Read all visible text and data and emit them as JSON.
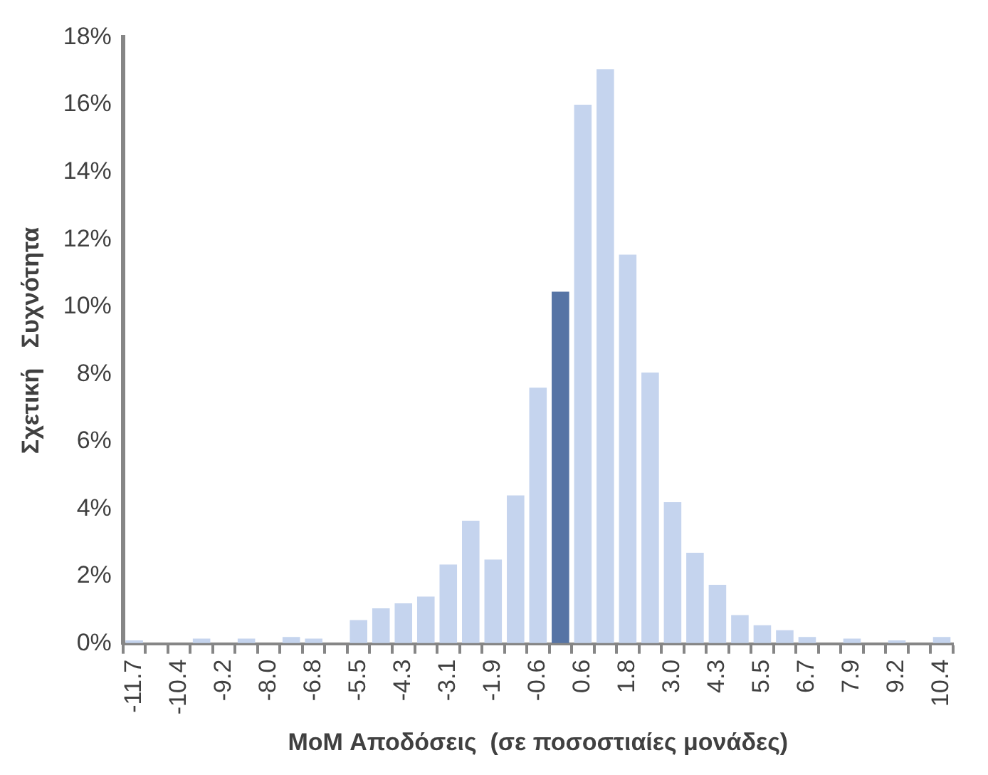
{
  "chart_data": {
    "type": "bar",
    "xlabel": "MoM Αποδόσεις  (σε ποσοστιαίες μονάδες)",
    "ylabel": "Σχετική   Συχνότητα",
    "categories": [
      "-11.7",
      null,
      "-10.4",
      null,
      "-9.2",
      null,
      "-8.0",
      null,
      "-6.8",
      null,
      "-5.5",
      null,
      "-4.3",
      null,
      "-3.1",
      null,
      "-1.9",
      null,
      "-0.6",
      null,
      "0.6",
      null,
      "1.8",
      null,
      "3.0",
      null,
      "4.3",
      null,
      "5.5",
      null,
      "6.7",
      null,
      "7.9",
      null,
      "9.2",
      null,
      "10.4"
    ],
    "values": [
      0.1,
      0,
      0,
      0.15,
      0,
      0.15,
      0,
      0.2,
      0.15,
      0,
      0.7,
      1.05,
      1.2,
      1.4,
      2.35,
      3.65,
      2.5,
      4.4,
      7.6,
      10.45,
      16.0,
      17.05,
      11.55,
      8.05,
      4.2,
      2.7,
      1.75,
      0.85,
      0.55,
      0.4,
      0.2,
      0,
      0.15,
      0,
      0.1,
      0,
      0.2
    ],
    "colors": [
      "#c5d4ee",
      "#c5d4ee",
      "#c5d4ee",
      "#c5d4ee",
      "#c5d4ee",
      "#c5d4ee",
      "#c5d4ee",
      "#c5d4ee",
      "#c5d4ee",
      "#c5d4ee",
      "#c5d4ee",
      "#c5d4ee",
      "#c5d4ee",
      "#c5d4ee",
      "#c5d4ee",
      "#c5d4ee",
      "#c5d4ee",
      "#c5d4ee",
      "#c5d4ee",
      "#5674a5",
      "#c5d4ee",
      "#c5d4ee",
      "#c5d4ee",
      "#c5d4ee",
      "#c5d4ee",
      "#c5d4ee",
      "#c5d4ee",
      "#c5d4ee",
      "#c5d4ee",
      "#c5d4ee",
      "#c5d4ee",
      "#c5d4ee",
      "#c5d4ee",
      "#c5d4ee",
      "#c5d4ee",
      "#c5d4ee",
      "#c5d4ee"
    ],
    "ylim": [
      0,
      18
    ],
    "yticks": [
      {
        "value": 0,
        "label": "0%"
      },
      {
        "value": 2,
        "label": "2%"
      },
      {
        "value": 4,
        "label": "4%"
      },
      {
        "value": 6,
        "label": "6%"
      },
      {
        "value": 8,
        "label": "8%"
      },
      {
        "value": 10,
        "label": "10%"
      },
      {
        "value": 12,
        "label": "12%"
      },
      {
        "value": 14,
        "label": "14%"
      },
      {
        "value": 16,
        "label": "16%"
      },
      {
        "value": 18,
        "label": "18%"
      }
    ],
    "grid": false,
    "legend": false
  }
}
